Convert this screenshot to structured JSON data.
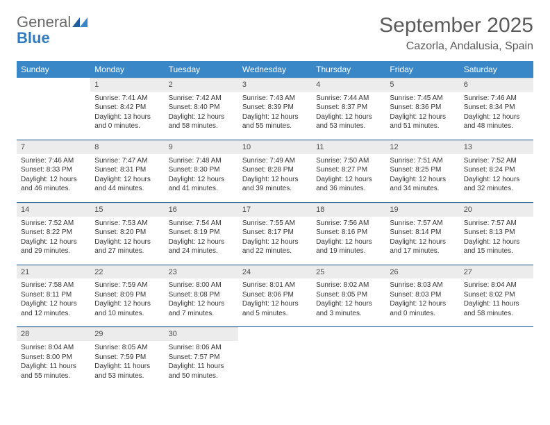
{
  "brand": {
    "general": "General",
    "blue": "Blue"
  },
  "title": "September 2025",
  "location": "Cazorla, Andalusia, Spain",
  "headers": [
    "Sunday",
    "Monday",
    "Tuesday",
    "Wednesday",
    "Thursday",
    "Friday",
    "Saturday"
  ],
  "colors": {
    "header_bg": "#3a87c8",
    "header_fg": "#ffffff",
    "daynum_bg": "#ececec",
    "row_border": "#2f6aa0",
    "brand_gray": "#6a6a6a",
    "brand_blue": "#2f7bc4"
  },
  "weeks": [
    [
      null,
      {
        "n": "1",
        "sr": "Sunrise: 7:41 AM",
        "ss": "Sunset: 8:42 PM",
        "dl": "Daylight: 13 hours and 0 minutes."
      },
      {
        "n": "2",
        "sr": "Sunrise: 7:42 AM",
        "ss": "Sunset: 8:40 PM",
        "dl": "Daylight: 12 hours and 58 minutes."
      },
      {
        "n": "3",
        "sr": "Sunrise: 7:43 AM",
        "ss": "Sunset: 8:39 PM",
        "dl": "Daylight: 12 hours and 55 minutes."
      },
      {
        "n": "4",
        "sr": "Sunrise: 7:44 AM",
        "ss": "Sunset: 8:37 PM",
        "dl": "Daylight: 12 hours and 53 minutes."
      },
      {
        "n": "5",
        "sr": "Sunrise: 7:45 AM",
        "ss": "Sunset: 8:36 PM",
        "dl": "Daylight: 12 hours and 51 minutes."
      },
      {
        "n": "6",
        "sr": "Sunrise: 7:46 AM",
        "ss": "Sunset: 8:34 PM",
        "dl": "Daylight: 12 hours and 48 minutes."
      }
    ],
    [
      {
        "n": "7",
        "sr": "Sunrise: 7:46 AM",
        "ss": "Sunset: 8:33 PM",
        "dl": "Daylight: 12 hours and 46 minutes."
      },
      {
        "n": "8",
        "sr": "Sunrise: 7:47 AM",
        "ss": "Sunset: 8:31 PM",
        "dl": "Daylight: 12 hours and 44 minutes."
      },
      {
        "n": "9",
        "sr": "Sunrise: 7:48 AM",
        "ss": "Sunset: 8:30 PM",
        "dl": "Daylight: 12 hours and 41 minutes."
      },
      {
        "n": "10",
        "sr": "Sunrise: 7:49 AM",
        "ss": "Sunset: 8:28 PM",
        "dl": "Daylight: 12 hours and 39 minutes."
      },
      {
        "n": "11",
        "sr": "Sunrise: 7:50 AM",
        "ss": "Sunset: 8:27 PM",
        "dl": "Daylight: 12 hours and 36 minutes."
      },
      {
        "n": "12",
        "sr": "Sunrise: 7:51 AM",
        "ss": "Sunset: 8:25 PM",
        "dl": "Daylight: 12 hours and 34 minutes."
      },
      {
        "n": "13",
        "sr": "Sunrise: 7:52 AM",
        "ss": "Sunset: 8:24 PM",
        "dl": "Daylight: 12 hours and 32 minutes."
      }
    ],
    [
      {
        "n": "14",
        "sr": "Sunrise: 7:52 AM",
        "ss": "Sunset: 8:22 PM",
        "dl": "Daylight: 12 hours and 29 minutes."
      },
      {
        "n": "15",
        "sr": "Sunrise: 7:53 AM",
        "ss": "Sunset: 8:20 PM",
        "dl": "Daylight: 12 hours and 27 minutes."
      },
      {
        "n": "16",
        "sr": "Sunrise: 7:54 AM",
        "ss": "Sunset: 8:19 PM",
        "dl": "Daylight: 12 hours and 24 minutes."
      },
      {
        "n": "17",
        "sr": "Sunrise: 7:55 AM",
        "ss": "Sunset: 8:17 PM",
        "dl": "Daylight: 12 hours and 22 minutes."
      },
      {
        "n": "18",
        "sr": "Sunrise: 7:56 AM",
        "ss": "Sunset: 8:16 PM",
        "dl": "Daylight: 12 hours and 19 minutes."
      },
      {
        "n": "19",
        "sr": "Sunrise: 7:57 AM",
        "ss": "Sunset: 8:14 PM",
        "dl": "Daylight: 12 hours and 17 minutes."
      },
      {
        "n": "20",
        "sr": "Sunrise: 7:57 AM",
        "ss": "Sunset: 8:13 PM",
        "dl": "Daylight: 12 hours and 15 minutes."
      }
    ],
    [
      {
        "n": "21",
        "sr": "Sunrise: 7:58 AM",
        "ss": "Sunset: 8:11 PM",
        "dl": "Daylight: 12 hours and 12 minutes."
      },
      {
        "n": "22",
        "sr": "Sunrise: 7:59 AM",
        "ss": "Sunset: 8:09 PM",
        "dl": "Daylight: 12 hours and 10 minutes."
      },
      {
        "n": "23",
        "sr": "Sunrise: 8:00 AM",
        "ss": "Sunset: 8:08 PM",
        "dl": "Daylight: 12 hours and 7 minutes."
      },
      {
        "n": "24",
        "sr": "Sunrise: 8:01 AM",
        "ss": "Sunset: 8:06 PM",
        "dl": "Daylight: 12 hours and 5 minutes."
      },
      {
        "n": "25",
        "sr": "Sunrise: 8:02 AM",
        "ss": "Sunset: 8:05 PM",
        "dl": "Daylight: 12 hours and 3 minutes."
      },
      {
        "n": "26",
        "sr": "Sunrise: 8:03 AM",
        "ss": "Sunset: 8:03 PM",
        "dl": "Daylight: 12 hours and 0 minutes."
      },
      {
        "n": "27",
        "sr": "Sunrise: 8:04 AM",
        "ss": "Sunset: 8:02 PM",
        "dl": "Daylight: 11 hours and 58 minutes."
      }
    ],
    [
      {
        "n": "28",
        "sr": "Sunrise: 8:04 AM",
        "ss": "Sunset: 8:00 PM",
        "dl": "Daylight: 11 hours and 55 minutes."
      },
      {
        "n": "29",
        "sr": "Sunrise: 8:05 AM",
        "ss": "Sunset: 7:59 PM",
        "dl": "Daylight: 11 hours and 53 minutes."
      },
      {
        "n": "30",
        "sr": "Sunrise: 8:06 AM",
        "ss": "Sunset: 7:57 PM",
        "dl": "Daylight: 11 hours and 50 minutes."
      },
      null,
      null,
      null,
      null
    ]
  ]
}
